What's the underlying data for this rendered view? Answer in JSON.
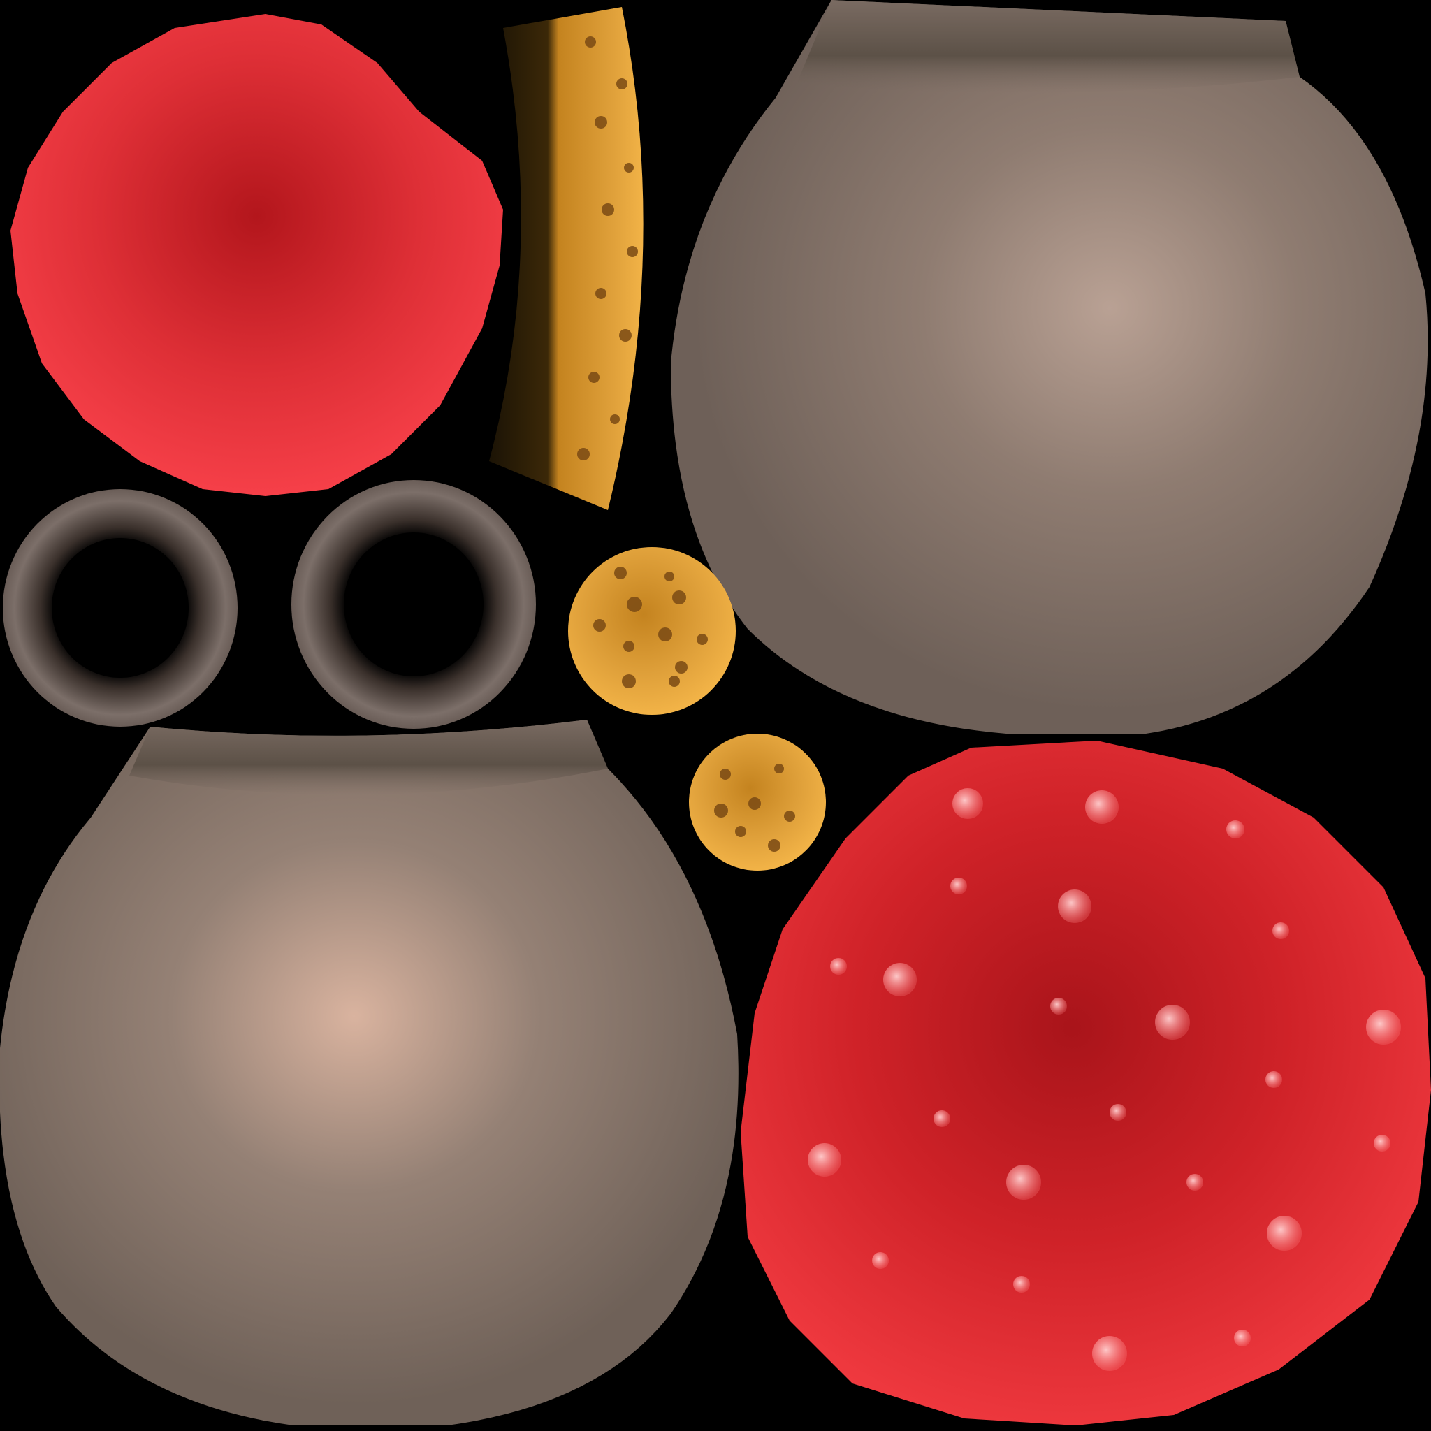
{
  "atlas": {
    "background": "#000000",
    "colors": {
      "red_cap_center": "#b3161c",
      "red_cap_edge": "#f8414a",
      "red_cap_spotted_edge": "#f13a40",
      "spot_highlight": "#ffd0d0",
      "pot_rim_dark": "#5c5147",
      "pot_body": "#7a6b62",
      "pot_highlight_top": "#b9a194",
      "pot_highlight_bottom": "#d9b39f",
      "ring_outer": "#7c6f69",
      "ring_inner": "#000000",
      "sponge_light": "#f2b347",
      "sponge_dark": "#c4831f",
      "sponge_hole": "#7a4a14",
      "bristle_dark": "#1b1305"
    },
    "parts": [
      {
        "name": "red-sphere-plain"
      },
      {
        "name": "sponge-strip"
      },
      {
        "name": "pot-top-right"
      },
      {
        "name": "ring-left"
      },
      {
        "name": "ring-right"
      },
      {
        "name": "sponge-disc-large"
      },
      {
        "name": "sponge-disc-small"
      },
      {
        "name": "pot-bottom-left"
      },
      {
        "name": "red-sphere-spotted"
      }
    ]
  }
}
